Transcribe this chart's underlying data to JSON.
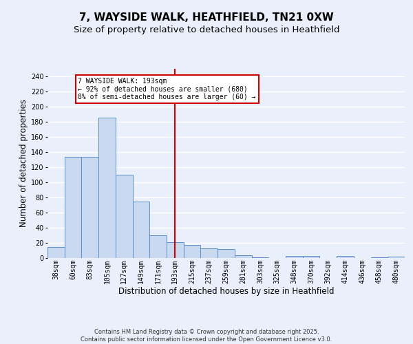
{
  "title1": "7, WAYSIDE WALK, HEATHFIELD, TN21 0XW",
  "title2": "Size of property relative to detached houses in Heathfield",
  "xlabel": "Distribution of detached houses by size in Heathfield",
  "ylabel": "Number of detached properties",
  "categories": [
    "38sqm",
    "60sqm",
    "83sqm",
    "105sqm",
    "127sqm",
    "149sqm",
    "171sqm",
    "193sqm",
    "215sqm",
    "237sqm",
    "259sqm",
    "281sqm",
    "303sqm",
    "325sqm",
    "348sqm",
    "370sqm",
    "392sqm",
    "414sqm",
    "436sqm",
    "458sqm",
    "480sqm"
  ],
  "values": [
    15,
    134,
    134,
    185,
    110,
    75,
    30,
    21,
    17,
    13,
    12,
    4,
    1,
    0,
    3,
    3,
    0,
    3,
    0,
    1,
    2
  ],
  "bar_color": "#c9d9f0",
  "bar_edge_color": "#5b8ec9",
  "background_color": "#eaf0fb",
  "grid_color": "#ffffff",
  "vline_x": 7,
  "vline_color": "#cc0000",
  "annotation_text": "7 WAYSIDE WALK: 193sqm\n← 92% of detached houses are smaller (680)\n8% of semi-detached houses are larger (60) →",
  "annotation_box_color": "#ffffff",
  "annotation_box_edge": "#cc0000",
  "ylim": [
    0,
    250
  ],
  "yticks": [
    0,
    20,
    40,
    60,
    80,
    100,
    120,
    140,
    160,
    180,
    200,
    220,
    240
  ],
  "footer": "Contains HM Land Registry data © Crown copyright and database right 2025.\nContains public sector information licensed under the Open Government Licence v3.0.",
  "title_fontsize": 11,
  "subtitle_fontsize": 9.5,
  "tick_fontsize": 7,
  "axis_label_fontsize": 8.5,
  "footer_fontsize": 6
}
